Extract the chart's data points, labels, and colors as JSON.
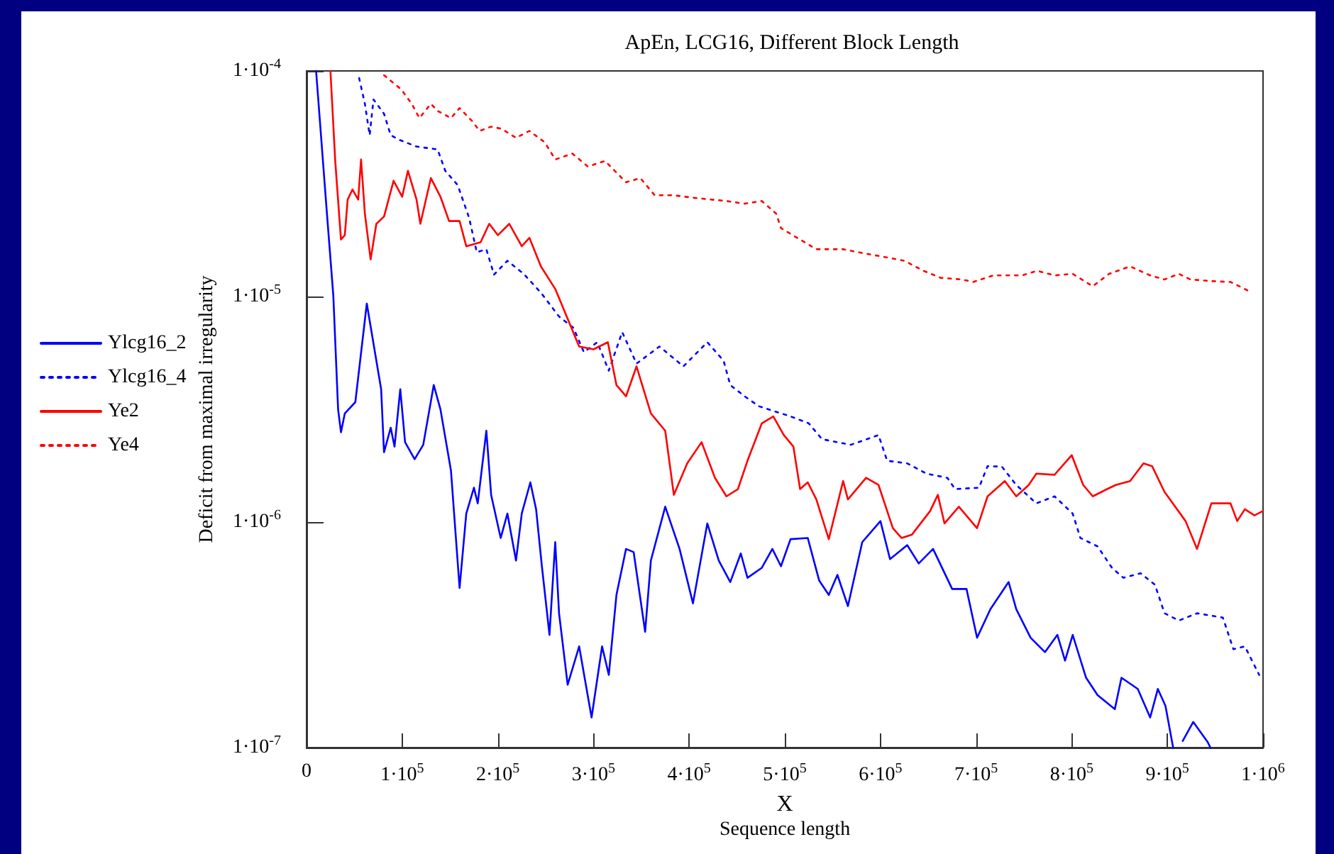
{
  "chart_data": {
    "type": "line",
    "title": "ApEn, LCG16, Different Block Length",
    "xlabel": "X\nSequence length",
    "ylabel": "Deficit from maximal irregularity",
    "log": "y",
    "legend": "left",
    "xlim": [
      0,
      1000000
    ],
    "xticks": [
      0,
      {
        "value": 100000,
        "label": "1·10$^{5}$"
      },
      {
        "value": 200000,
        "label": "2·10$^{5}$"
      },
      {
        "value": 300000,
        "label": "3·10$^{5}$"
      },
      {
        "value": 400000,
        "label": "4·10$^{5}$"
      },
      {
        "value": 500000,
        "label": "5·10$^{5}$"
      },
      {
        "value": 600000,
        "label": "6·10$^{5}$"
      },
      {
        "value": 700000,
        "label": "7·10$^{5}$"
      },
      {
        "value": 800000,
        "label": "8·10$^{5}$"
      },
      {
        "value": 900000,
        "label": "9·10$^{5}$"
      },
      {
        "value": 1000000,
        "label": "1·10$^{6}$"
      }
    ],
    "ylim": [
      1e-07,
      0.0001
    ],
    "yticks": [
      {
        "value": 1e-07,
        "label": "1·10$^{-7}$"
      },
      {
        "value": 1e-06,
        "label": "1·10$^{-6}$"
      },
      {
        "value": 1e-05,
        "label": "1·10$^{-5}$"
      },
      {
        "value": 0.0001,
        "label": "1·10$^{-4}$"
      }
    ],
    "series": [
      {
        "name": "Ylcg16_2",
        "color": "#0000ff",
        "line_style": "solid",
        "x": [
          10000,
          21000,
          28000,
          33000,
          36000,
          40000,
          51000,
          63000,
          78000,
          81000,
          88000,
          92000,
          98000,
          103000,
          113000,
          122000,
          133000,
          140000,
          151000,
          160000,
          167000,
          175000,
          179000,
          188000,
          193000,
          203000,
          210000,
          219000,
          225000,
          234000,
          240000,
          246000,
          254000,
          260000,
          264000,
          273000,
          285000,
          298000,
          309000,
          316000,
          324000,
          334000,
          342000,
          354000,
          360000,
          375000,
          390000,
          404000,
          419000,
          431000,
          443000,
          454000,
          461000,
          476000,
          487000,
          496000,
          506000,
          524000,
          536000,
          546000,
          555000,
          566000,
          581000,
          600000,
          610000,
          628000,
          640000,
          655000,
          675000,
          690000,
          701000,
          715000,
          734000,
          742000,
          757000,
          772000,
          785000,
          793000,
          801000,
          815000,
          827000,
          845000,
          852000,
          869000,
          882000,
          890000,
          898000,
          906000,
          910000,
          916000,
          927000,
          942000,
          945000
        ],
        "values": [
          0.0001,
          2.43e-05,
          1.01e-05,
          3.16e-06,
          2.5e-06,
          3.03e-06,
          3.4e-06,
          9.3e-06,
          3.88e-06,
          2.04e-06,
          2.62e-06,
          2.16e-06,
          3.88e-06,
          2.26e-06,
          1.9e-06,
          2.2e-06,
          4.05e-06,
          3.16e-06,
          1.69e-06,
          5.1e-07,
          1.09e-06,
          1.42e-06,
          1.21e-06,
          2.54e-06,
          1.32e-06,
          8.5e-07,
          1.09e-06,
          6.75e-07,
          1.09e-06,
          1.5e-06,
          1.14e-06,
          6.4e-07,
          3.16e-07,
          8.15e-07,
          3.94e-07,
          1.9e-07,
          2.81e-07,
          1.36e-07,
          2.81e-07,
          2.1e-07,
          4.75e-07,
          7.6e-07,
          7.36e-07,
          3.26e-07,
          6.75e-07,
          1.17e-06,
          7.6e-07,
          4.36e-07,
          9.86e-07,
          6.75e-07,
          5.42e-07,
          7.26e-07,
          5.66e-07,
          6.27e-07,
          7.6e-07,
          6.37e-07,
          8.4e-07,
          8.5e-07,
          5.5e-07,
          4.75e-07,
          5.83e-07,
          4.24e-07,
          8.15e-07,
          1.01e-06,
          6.85e-07,
          7.9e-07,
          6.55e-07,
          7.6e-07,
          5.05e-07,
          5.05e-07,
          3.07e-07,
          4.11e-07,
          5.42e-07,
          4.11e-07,
          3.07e-07,
          2.65e-07,
          3.16e-07,
          2.43e-07,
          3.16e-07,
          2.04e-07,
          1.71e-07,
          1.48e-07,
          2.04e-07,
          1.82e-07,
          1.36e-07,
          1.82e-07,
          1.53e-07,
          1e-07,
          null,
          1.07e-07,
          1.3e-07,
          1.06e-07,
          1e-07
        ]
      },
      {
        "name": "Ylcg16_4",
        "color": "#0000ff",
        "line_style": "dotted",
        "x": [
          55000,
          61000,
          66000,
          70000,
          81000,
          88000,
          96000,
          115000,
          137000,
          145000,
          158000,
          170000,
          178000,
          188000,
          196000,
          210000,
          227000,
          245000,
          264000,
          279000,
          290000,
          304000,
          316000,
          330000,
          345000,
          369000,
          394000,
          419000,
          436000,
          443000,
          458000,
          473000,
          506000,
          525000,
          539000,
          569000,
          598000,
          607000,
          628000,
          648000,
          670000,
          678000,
          703000,
          712000,
          727000,
          742000,
          763000,
          782000,
          801000,
          809000,
          827000,
          842000,
          854000,
          872000,
          887000,
          897000,
          912000,
          931000,
          958000,
          969000,
          981000,
          996000
        ],
        "values": [
          9.3e-05,
          7.15e-05,
          5.19e-05,
          7.47e-05,
          6.46e-05,
          5.19e-05,
          4.97e-05,
          4.62e-05,
          4.49e-05,
          3.61e-05,
          3.12e-05,
          2.23e-05,
          1.57e-05,
          1.62e-05,
          1.25e-05,
          1.44e-05,
          1.26e-05,
          1.04e-05,
          8.15e-06,
          7.26e-06,
          5.66e-06,
          6.27e-06,
          4.69e-06,
          6.95e-06,
          5.04e-06,
          6e-06,
          4.9e-06,
          6.27e-06,
          5.19e-06,
          4.05e-06,
          3.61e-06,
          3.26e-06,
          2.94e-06,
          2.74e-06,
          2.33e-06,
          2.2e-06,
          2.43e-06,
          1.87e-06,
          1.82e-06,
          1.64e-06,
          1.57e-06,
          1.4e-06,
          1.42e-06,
          1.77e-06,
          1.76e-06,
          1.46e-06,
          1.21e-06,
          1.3e-06,
          1.09e-06,
          8.5e-07,
          7.8e-07,
          6.27e-07,
          5.66e-07,
          5.93e-07,
          5.27e-07,
          3.94e-07,
          3.66e-07,
          3.94e-07,
          3.77e-07,
          2.73e-07,
          2.81e-07,
          2.1e-07
        ]
      },
      {
        "name": "Ye2",
        "color": "#ff0000",
        "line_style": "solid",
        "x": [
          25000,
          30000,
          36000,
          40000,
          43000,
          48000,
          54000,
          57000,
          61000,
          67000,
          73000,
          81000,
          91000,
          100000,
          106000,
          115000,
          119000,
          130000,
          140000,
          149000,
          160000,
          167000,
          182000,
          191000,
          200000,
          212000,
          225000,
          233000,
          245000,
          260000,
          272000,
          285000,
          300000,
          315000,
          324000,
          334000,
          345000,
          360000,
          375000,
          384000,
          398000,
          413000,
          427000,
          439000,
          451000,
          461000,
          476000,
          488000,
          499000,
          509000,
          516000,
          524000,
          533000,
          546000,
          561000,
          566000,
          585000,
          598000,
          613000,
          622000,
          633000,
          652000,
          660000,
          667000,
          682000,
          701000,
          712000,
          730000,
          742000,
          755000,
          763000,
          782000,
          800000,
          812000,
          822000,
          837000,
          846000,
          861000,
          875000,
          884000,
          897000,
          919000,
          931000,
          946000,
          966000,
          973000,
          981000,
          991000,
          1000000
        ],
        "values": [
          0.0001,
          3.99e-05,
          1.79e-05,
          1.87e-05,
          2.69e-05,
          2.98e-05,
          2.69e-05,
          4.05e-05,
          2.33e-05,
          1.46e-05,
          2.1e-05,
          2.26e-05,
          3.26e-05,
          2.77e-05,
          3.61e-05,
          2.69e-05,
          2.1e-05,
          3.35e-05,
          2.77e-05,
          2.16e-05,
          2.16e-05,
          1.67e-05,
          1.74e-05,
          2.1e-05,
          1.87e-05,
          2.1e-05,
          1.67e-05,
          1.82e-05,
          1.36e-05,
          1.08e-05,
          8.15e-06,
          6e-06,
          5.83e-06,
          6.27e-06,
          4.05e-06,
          3.61e-06,
          4.9e-06,
          3.03e-06,
          2.54e-06,
          1.32e-06,
          1.82e-06,
          2.26e-06,
          1.57e-06,
          1.3e-06,
          1.4e-06,
          1.87e-06,
          2.74e-06,
          2.94e-06,
          2.43e-06,
          2.16e-06,
          1.4e-06,
          1.5e-06,
          1.26e-06,
          8.4e-07,
          1.52e-06,
          1.26e-06,
          1.57e-06,
          1.46e-06,
          9.4e-07,
          8.5e-07,
          8.8e-07,
          1.12e-06,
          1.32e-06,
          9.86e-07,
          1.17e-06,
          9.4e-07,
          1.3e-06,
          1.52e-06,
          1.3e-06,
          1.46e-06,
          1.64e-06,
          1.62e-06,
          1.98e-06,
          1.46e-06,
          1.3e-06,
          1.4e-06,
          1.46e-06,
          1.52e-06,
          1.82e-06,
          1.77e-06,
          1.36e-06,
          1.01e-06,
          7.6e-07,
          1.21e-06,
          1.21e-06,
          1.01e-06,
          1.14e-06,
          1.07e-06,
          1.12e-06
        ]
      },
      {
        "name": "Ye4",
        "color": "#ff0000",
        "line_style": "dotted",
        "x": [
          81000,
          99000,
          110000,
          118000,
          130000,
          137000,
          151000,
          160000,
          173000,
          181000,
          193000,
          204000,
          219000,
          233000,
          249000,
          260000,
          278000,
          294000,
          312000,
          334000,
          349000,
          364000,
          384000,
          404000,
          439000,
          458000,
          476000,
          491000,
          496000,
          513000,
          533000,
          561000,
          584000,
          603000,
          625000,
          645000,
          663000,
          685000,
          697000,
          718000,
          748000,
          764000,
          782000,
          801000,
          822000,
          839000,
          861000,
          882000,
          897000,
          912000,
          924000,
          946000,
          966000,
          979000,
          988000
        ],
        "values": [
          9.57e-05,
          8.28e-05,
          7.15e-05,
          6.18e-05,
          7.15e-05,
          6.65e-05,
          6.18e-05,
          6.84e-05,
          6e-05,
          5.42e-05,
          5.66e-05,
          5.54e-05,
          5.05e-05,
          5.42e-05,
          4.83e-05,
          4.05e-05,
          4.3e-05,
          3.77e-05,
          3.99e-05,
          3.21e-05,
          3.35e-05,
          2.81e-05,
          2.81e-05,
          2.74e-05,
          2.65e-05,
          2.58e-05,
          2.65e-05,
          2.33e-05,
          2.01e-05,
          1.82e-05,
          1.62e-05,
          1.62e-05,
          1.55e-05,
          1.5e-05,
          1.44e-05,
          1.3e-05,
          1.21e-05,
          1.19e-05,
          1.16e-05,
          1.24e-05,
          1.24e-05,
          1.3e-05,
          1.24e-05,
          1.26e-05,
          1.11e-05,
          1.26e-05,
          1.36e-05,
          1.24e-05,
          1.19e-05,
          1.26e-05,
          1.19e-05,
          1.17e-05,
          1.16e-05,
          1.09e-05,
          1.04e-05
        ]
      }
    ]
  }
}
